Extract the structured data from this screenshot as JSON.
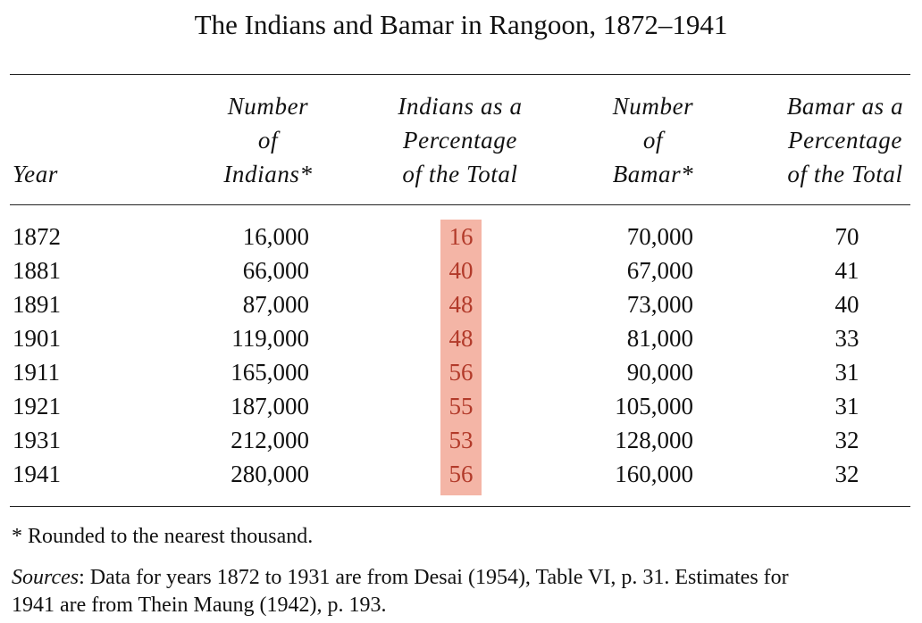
{
  "title": "The Indians and Bamar in Rangoon, 1872–1941",
  "headers": {
    "year": "Year",
    "num_indians": [
      "Number",
      "of",
      "Indians*"
    ],
    "pct_indians": [
      "Indians as a",
      "Percentage",
      "of the Total"
    ],
    "num_bamar": [
      "Number",
      "of",
      "Bamar*"
    ],
    "pct_bamar": [
      "Bamar as a",
      "Percentage",
      "of the Total"
    ]
  },
  "rows": [
    {
      "year": "1872",
      "num_indians": "16,000",
      "pct_indians": "16",
      "num_bamar": "70,000",
      "pct_bamar": "70"
    },
    {
      "year": "1881",
      "num_indians": "66,000",
      "pct_indians": "40",
      "num_bamar": "67,000",
      "pct_bamar": "41"
    },
    {
      "year": "1891",
      "num_indians": "87,000",
      "pct_indians": "48",
      "num_bamar": "73,000",
      "pct_bamar": "40"
    },
    {
      "year": "1901",
      "num_indians": "119,000",
      "pct_indians": "48",
      "num_bamar": "81,000",
      "pct_bamar": "33"
    },
    {
      "year": "1911",
      "num_indians": "165,000",
      "pct_indians": "56",
      "num_bamar": "90,000",
      "pct_bamar": "31"
    },
    {
      "year": "1921",
      "num_indians": "187,000",
      "pct_indians": "55",
      "num_bamar": "105,000",
      "pct_bamar": "31"
    },
    {
      "year": "1931",
      "num_indians": "212,000",
      "pct_indians": "53",
      "num_bamar": "128,000",
      "pct_bamar": "32"
    },
    {
      "year": "1941",
      "num_indians": "280,000",
      "pct_indians": "56",
      "num_bamar": "160,000",
      "pct_bamar": "32"
    }
  ],
  "footnote": "* Rounded to the nearest thousand.",
  "sources": {
    "label": "Sources",
    "line1": ": Data for years 1872 to 1931 are from Desai (1954), Table VI, p. 31. Estimates for",
    "line2": "1941 are from Thein Maung (1942), p. 193."
  },
  "colors": {
    "highlight": "#f4b5a6",
    "highlight_text": "#b23a2a"
  }
}
